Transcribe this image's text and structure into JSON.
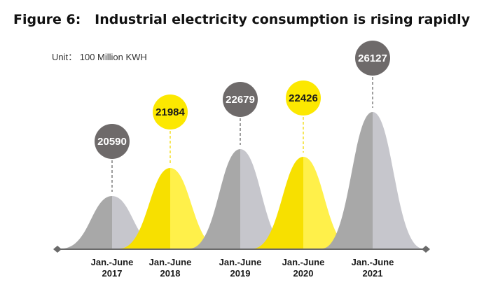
{
  "title": "Figure 6:   Industrial electricity consumption is rising rapidly",
  "unit_label": "Unit： 100 Million KWH",
  "colors": {
    "gray_left": "#a8a8a8",
    "gray_right": "#c6c6cc",
    "yellow_left": "#f7e000",
    "yellow_right": "#fff04a",
    "bubble_gray": "#6e6a6a",
    "bubble_yellow": "#fce800",
    "bubble_text_light": "#ffffff",
    "bubble_text_dark": "#1a1a1a",
    "axis": "#6a6a6a"
  },
  "chart_data": {
    "type": "area",
    "categories": [
      [
        "Jan.-June",
        "2017"
      ],
      [
        "Jan.-June",
        "2018"
      ],
      [
        "Jan.-June",
        "2019"
      ],
      [
        "Jan.-June",
        "2020"
      ],
      [
        "Jan.-June",
        "2021"
      ]
    ],
    "values": [
      20590,
      21984,
      22679,
      22426,
      26127
    ],
    "styles": [
      "gray",
      "yellow",
      "gray",
      "yellow",
      "gray"
    ],
    "grid": false,
    "legend": "none"
  }
}
